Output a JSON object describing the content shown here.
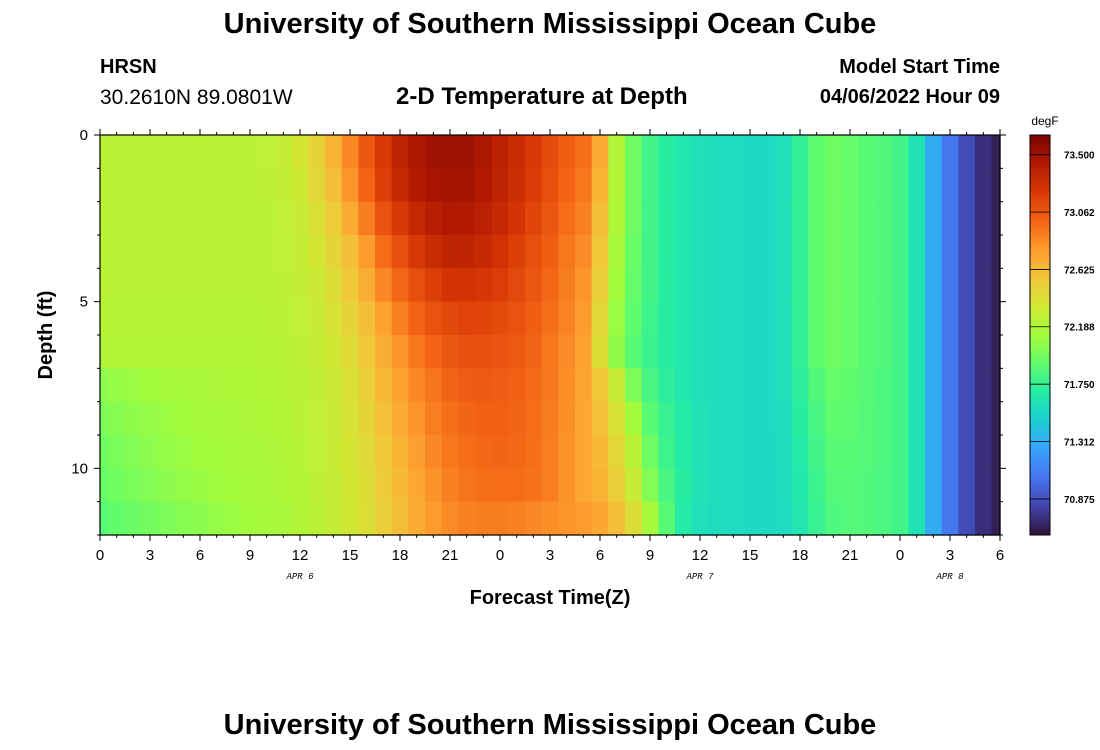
{
  "page": {
    "title": "University of Southern Mississippi Ocean Cube",
    "footer_title": "University of Southern Mississippi Ocean Cube",
    "station": "HRSN",
    "coordinates": "30.2610N  89.0801W",
    "subtitle": "2-D Temperature at Depth",
    "model_start_label": "Model Start Time",
    "model_start_value": "04/06/2022 Hour 09"
  },
  "chart_data": {
    "type": "heatmap",
    "title": "2-D Temperature at Depth",
    "xlabel": "Forecast Time(Z)",
    "ylabel": "Depth (ft)",
    "x_tick_labels": [
      "0",
      "3",
      "6",
      "9",
      "12",
      "15",
      "18",
      "21",
      "0",
      "3",
      "6",
      "9",
      "12",
      "15",
      "18",
      "21",
      "0",
      "3",
      "6"
    ],
    "x_hours_since_apr6_00z": [
      0,
      3,
      6,
      9,
      12,
      15,
      18,
      21,
      24,
      27,
      30,
      33,
      36,
      39,
      42,
      45,
      48,
      51,
      54
    ],
    "date_labels": [
      {
        "text": "APR 6",
        "hour": 12
      },
      {
        "text": "APR 7",
        "hour": 36
      },
      {
        "text": "APR 8",
        "hour": 51
      }
    ],
    "y_tick_labels": [
      "0",
      "5",
      "10"
    ],
    "y_ticks": [
      0,
      5,
      10
    ],
    "ylim": [
      0,
      12
    ],
    "y_inverted": true,
    "colorbar": {
      "unit": "degF",
      "ticks": [
        "73.500",
        "73.062",
        "72.625",
        "72.188",
        "71.750",
        "71.312",
        "70.875"
      ],
      "tick_values": [
        73.5,
        73.062,
        72.625,
        72.188,
        71.75,
        71.312,
        70.875
      ],
      "vmin": 70.6,
      "vmax": 73.65,
      "colormap": [
        "#30123b",
        "#4145ab",
        "#4675ed",
        "#39a2fc",
        "#1bcfd4",
        "#24eca6",
        "#61fc6c",
        "#a4fc3b",
        "#d1e834",
        "#f3c63a",
        "#fe9b2d",
        "#f36315",
        "#d93806",
        "#b11901",
        "#7a0403"
      ]
    },
    "depth_levels_ft": [
      0.5,
      1.5,
      2.5,
      3.5,
      4.5,
      5.5,
      6.5,
      7.5,
      8.5,
      9.5,
      10.5,
      11.5
    ],
    "hours": [
      0,
      1,
      2,
      3,
      4,
      5,
      6,
      7,
      8,
      9,
      10,
      11,
      12,
      13,
      14,
      15,
      16,
      17,
      18,
      19,
      20,
      21,
      22,
      23,
      24,
      25,
      26,
      27,
      28,
      29,
      30,
      31,
      32,
      33,
      34,
      35,
      36,
      37,
      38,
      39,
      40,
      41,
      42,
      43,
      44,
      45,
      46,
      47,
      48,
      49,
      50,
      51,
      52,
      53,
      54
    ],
    "temperature_degF": [
      [
        72.23,
        72.23,
        72.22,
        72.22,
        72.22,
        72.22,
        72.22,
        72.22,
        72.22,
        72.23,
        72.25,
        72.28,
        72.35,
        72.48,
        72.65,
        72.85,
        73.05,
        73.22,
        73.35,
        73.45,
        73.5,
        73.52,
        73.5,
        73.45,
        73.38,
        73.3,
        73.22,
        73.12,
        73.02,
        72.95,
        72.7,
        72.2,
        71.95,
        71.8,
        71.7,
        71.65,
        71.6,
        71.58,
        71.56,
        71.55,
        71.55,
        71.6,
        71.75,
        71.9,
        71.95,
        71.92,
        71.88,
        71.85,
        71.8,
        71.62,
        71.3,
        71.05,
        70.85,
        70.72,
        70.65
      ],
      [
        72.23,
        72.23,
        72.22,
        72.22,
        72.22,
        72.22,
        72.22,
        72.22,
        72.22,
        72.23,
        72.24,
        72.27,
        72.33,
        72.45,
        72.6,
        72.8,
        73.0,
        73.18,
        73.32,
        73.42,
        73.47,
        73.49,
        73.48,
        73.43,
        73.36,
        73.28,
        73.2,
        73.1,
        73.0,
        72.92,
        72.65,
        72.2,
        71.95,
        71.8,
        71.7,
        71.65,
        71.6,
        71.58,
        71.56,
        71.55,
        71.55,
        71.6,
        71.75,
        71.9,
        71.95,
        71.92,
        71.88,
        71.85,
        71.8,
        71.62,
        71.3,
        71.05,
        70.85,
        70.72,
        70.65
      ],
      [
        72.23,
        72.23,
        72.22,
        72.22,
        72.22,
        72.22,
        72.22,
        72.22,
        72.22,
        72.22,
        72.23,
        72.26,
        72.3,
        72.4,
        72.53,
        72.7,
        72.9,
        73.08,
        73.22,
        73.33,
        73.4,
        73.43,
        73.42,
        73.38,
        73.32,
        73.24,
        73.15,
        73.06,
        72.96,
        72.88,
        72.6,
        72.18,
        71.95,
        71.8,
        71.7,
        71.65,
        71.6,
        71.58,
        71.56,
        71.55,
        71.55,
        71.6,
        71.75,
        71.9,
        71.95,
        71.92,
        71.88,
        71.85,
        71.8,
        71.62,
        71.3,
        71.05,
        70.85,
        70.72,
        70.65
      ],
      [
        72.22,
        72.22,
        72.22,
        72.22,
        72.22,
        72.22,
        72.22,
        72.22,
        72.22,
        72.22,
        72.23,
        72.25,
        72.28,
        72.36,
        72.47,
        72.6,
        72.78,
        72.96,
        73.1,
        73.22,
        73.3,
        73.35,
        73.35,
        73.32,
        73.26,
        73.18,
        73.1,
        73.02,
        72.92,
        72.84,
        72.55,
        72.15,
        71.93,
        71.8,
        71.7,
        71.65,
        71.6,
        71.58,
        71.56,
        71.55,
        71.55,
        71.6,
        71.75,
        71.9,
        71.95,
        71.92,
        71.88,
        71.85,
        71.8,
        71.62,
        71.3,
        71.05,
        70.85,
        70.72,
        70.65
      ],
      [
        72.22,
        72.22,
        72.22,
        72.22,
        72.22,
        72.22,
        72.22,
        72.22,
        72.22,
        72.22,
        72.22,
        72.24,
        72.27,
        72.32,
        72.42,
        72.54,
        72.68,
        72.85,
        72.98,
        73.1,
        73.18,
        73.24,
        73.25,
        73.23,
        73.19,
        73.13,
        73.06,
        72.98,
        72.9,
        72.8,
        72.5,
        72.12,
        71.92,
        71.8,
        71.7,
        71.65,
        71.6,
        71.58,
        71.56,
        71.55,
        71.55,
        71.6,
        71.75,
        71.9,
        71.95,
        71.92,
        71.88,
        71.85,
        71.8,
        71.62,
        71.3,
        71.05,
        70.85,
        70.72,
        70.65
      ],
      [
        72.21,
        72.21,
        72.21,
        72.21,
        72.21,
        72.21,
        72.21,
        72.21,
        72.21,
        72.21,
        72.22,
        72.23,
        72.26,
        72.3,
        72.38,
        72.48,
        72.6,
        72.75,
        72.88,
        73.0,
        73.08,
        73.14,
        73.16,
        73.15,
        73.12,
        73.08,
        73.02,
        72.95,
        72.87,
        72.77,
        72.45,
        72.1,
        71.9,
        71.78,
        71.7,
        71.65,
        71.6,
        71.58,
        71.56,
        71.55,
        71.55,
        71.6,
        71.75,
        71.9,
        71.95,
        71.92,
        71.88,
        71.85,
        71.8,
        71.62,
        71.3,
        71.05,
        70.85,
        70.72,
        70.65
      ],
      [
        72.2,
        72.2,
        72.2,
        72.2,
        72.2,
        72.2,
        72.2,
        72.2,
        72.2,
        72.2,
        72.21,
        72.22,
        72.24,
        72.28,
        72.34,
        72.43,
        72.55,
        72.68,
        72.8,
        72.92,
        73.0,
        73.06,
        73.09,
        73.09,
        73.07,
        73.04,
        72.99,
        72.92,
        72.84,
        72.74,
        72.42,
        72.06,
        71.88,
        71.77,
        71.7,
        71.65,
        71.6,
        71.58,
        71.56,
        71.55,
        71.55,
        71.6,
        71.75,
        71.9,
        71.95,
        71.92,
        71.88,
        71.85,
        71.8,
        71.62,
        71.3,
        71.05,
        70.85,
        70.72,
        70.65
      ],
      [
        72.05,
        72.08,
        72.1,
        72.12,
        72.14,
        72.15,
        72.16,
        72.17,
        72.18,
        72.18,
        72.19,
        72.21,
        72.23,
        72.27,
        72.32,
        72.4,
        72.5,
        72.62,
        72.74,
        72.85,
        72.93,
        72.99,
        73.03,
        73.04,
        73.03,
        73.01,
        72.97,
        72.91,
        72.83,
        72.73,
        72.55,
        72.3,
        72.0,
        71.82,
        71.72,
        71.65,
        71.6,
        71.58,
        71.56,
        71.55,
        71.55,
        71.6,
        71.72,
        71.85,
        71.92,
        71.9,
        71.87,
        71.84,
        71.8,
        71.62,
        71.3,
        71.05,
        70.85,
        70.72,
        70.65
      ],
      [
        72.0,
        72.03,
        72.06,
        72.08,
        72.1,
        72.12,
        72.14,
        72.15,
        72.16,
        72.17,
        72.18,
        72.2,
        72.22,
        72.26,
        72.31,
        72.38,
        72.47,
        72.58,
        72.7,
        72.8,
        72.89,
        72.95,
        72.99,
        73.01,
        73.01,
        72.99,
        72.96,
        72.9,
        72.82,
        72.72,
        72.58,
        72.38,
        72.12,
        71.88,
        71.76,
        71.68,
        71.61,
        71.58,
        71.56,
        71.55,
        71.55,
        71.58,
        71.7,
        71.82,
        71.9,
        71.89,
        71.86,
        71.84,
        71.8,
        71.62,
        71.3,
        71.05,
        70.85,
        70.72,
        70.65
      ],
      [
        71.96,
        71.99,
        72.02,
        72.05,
        72.08,
        72.1,
        72.12,
        72.13,
        72.15,
        72.16,
        72.17,
        72.19,
        72.21,
        72.25,
        72.3,
        72.36,
        72.44,
        72.55,
        72.66,
        72.76,
        72.85,
        72.92,
        72.96,
        72.98,
        72.99,
        72.98,
        72.95,
        72.89,
        72.81,
        72.72,
        72.62,
        72.45,
        72.22,
        71.95,
        71.78,
        71.68,
        71.62,
        71.58,
        71.56,
        71.55,
        71.55,
        71.57,
        71.68,
        71.8,
        71.88,
        71.88,
        71.86,
        71.84,
        71.8,
        71.62,
        71.3,
        71.05,
        70.85,
        70.72,
        70.65
      ],
      [
        71.93,
        71.96,
        71.99,
        72.02,
        72.05,
        72.07,
        72.09,
        72.11,
        72.13,
        72.14,
        72.16,
        72.18,
        72.2,
        72.24,
        72.29,
        72.35,
        72.42,
        72.52,
        72.62,
        72.72,
        72.81,
        72.88,
        72.93,
        72.95,
        72.96,
        72.96,
        72.94,
        72.89,
        72.81,
        72.72,
        72.65,
        72.5,
        72.3,
        72.02,
        71.82,
        71.7,
        71.62,
        71.58,
        71.56,
        71.55,
        71.55,
        71.57,
        71.66,
        71.78,
        71.86,
        71.87,
        71.85,
        71.83,
        71.8,
        71.62,
        71.3,
        71.05,
        70.85,
        70.72,
        70.65
      ],
      [
        71.88,
        71.91,
        71.94,
        71.97,
        72.0,
        72.03,
        72.05,
        72.08,
        72.1,
        72.12,
        72.14,
        72.16,
        72.19,
        72.23,
        72.28,
        72.34,
        72.41,
        72.5,
        72.6,
        72.7,
        72.78,
        72.84,
        72.88,
        72.9,
        72.9,
        72.88,
        72.85,
        72.82,
        72.8,
        72.78,
        72.72,
        72.6,
        72.42,
        72.15,
        71.88,
        71.68,
        71.6,
        71.57,
        71.56,
        71.55,
        71.55,
        71.56,
        71.64,
        71.76,
        71.84,
        71.86,
        71.85,
        71.83,
        71.8,
        71.62,
        71.3,
        71.05,
        70.85,
        70.72,
        70.65
      ]
    ]
  }
}
